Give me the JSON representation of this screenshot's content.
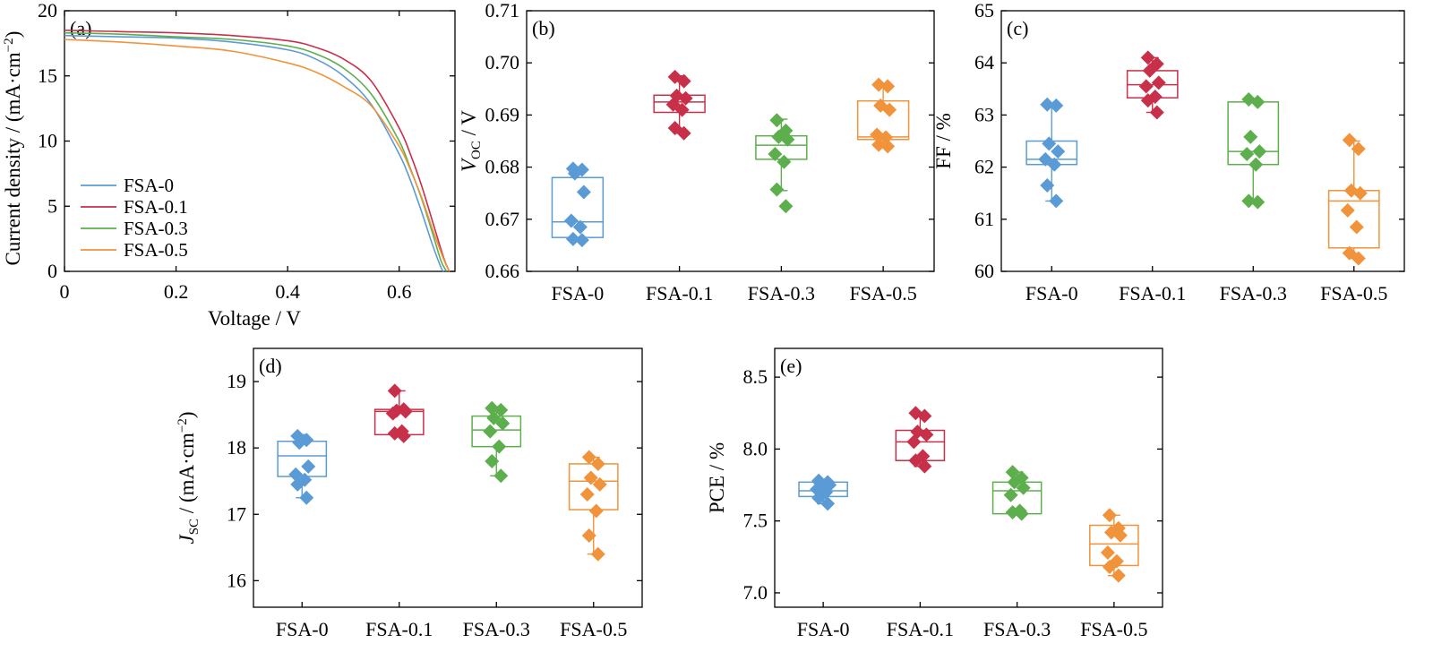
{
  "colors": {
    "FSA-0": "#5b9bd5",
    "FSA-0.1": "#c8304a",
    "FSA-0.3": "#5caf4c",
    "FSA-0.5": "#f0933b"
  },
  "chart_data": [
    {
      "panel": "(a)",
      "type": "line",
      "xlabel": "Voltage / V",
      "ylabel": "Current density / (mA·cm⁻²)",
      "xlim": [
        0,
        0.7
      ],
      "ylim": [
        0,
        20
      ],
      "xticks": [
        "0",
        "0.2",
        "0.4",
        "0.6"
      ],
      "yticks": [
        "0",
        "5",
        "10",
        "15",
        "20"
      ],
      "legend_position": "bottom-left",
      "series": [
        {
          "name": "FSA-0",
          "x": [
            0,
            0.1,
            0.2,
            0.3,
            0.4,
            0.45,
            0.5,
            0.55,
            0.6,
            0.62,
            0.64,
            0.66,
            0.675,
            0.68
          ],
          "y": [
            18.1,
            18.0,
            17.9,
            17.6,
            17.0,
            16.3,
            15.0,
            12.8,
            9.0,
            7.0,
            4.6,
            2.0,
            0.3,
            0
          ]
        },
        {
          "name": "FSA-0.1",
          "x": [
            0,
            0.1,
            0.2,
            0.3,
            0.4,
            0.45,
            0.5,
            0.55,
            0.6,
            0.62,
            0.64,
            0.66,
            0.68,
            0.69
          ],
          "y": [
            18.5,
            18.4,
            18.3,
            18.1,
            17.7,
            17.2,
            16.3,
            14.6,
            11.0,
            9.0,
            6.6,
            3.8,
            1.0,
            0
          ]
        },
        {
          "name": "FSA-0.3",
          "x": [
            0,
            0.1,
            0.2,
            0.3,
            0.4,
            0.45,
            0.5,
            0.55,
            0.6,
            0.62,
            0.64,
            0.66,
            0.675,
            0.685
          ],
          "y": [
            18.3,
            18.2,
            18.0,
            17.8,
            17.3,
            16.7,
            15.6,
            13.6,
            10.0,
            7.9,
            5.6,
            2.9,
            0.8,
            0
          ]
        },
        {
          "name": "FSA-0.5",
          "x": [
            0,
            0.1,
            0.2,
            0.3,
            0.4,
            0.45,
            0.5,
            0.55,
            0.6,
            0.62,
            0.64,
            0.66,
            0.68,
            0.69
          ],
          "y": [
            17.8,
            17.6,
            17.3,
            16.9,
            16.0,
            15.3,
            14.2,
            12.7,
            9.6,
            7.8,
            5.7,
            3.2,
            0.9,
            0
          ]
        }
      ]
    },
    {
      "panel": "(b)",
      "type": "box",
      "ylabel": "V_OC / V",
      "ylim": [
        0.66,
        0.71
      ],
      "yticks": [
        "0.66",
        "0.67",
        "0.68",
        "0.69",
        "0.70",
        "0.71"
      ],
      "categories": [
        "FSA-0",
        "FSA-0.1",
        "FSA-0.3",
        "FSA-0.5"
      ],
      "boxes": [
        {
          "q1": 0.6665,
          "median": 0.6695,
          "q3": 0.678,
          "min": 0.666,
          "max": 0.68,
          "points": [
            0.6797,
            0.6795,
            0.6788,
            0.6752,
            0.6697,
            0.6685,
            0.6662,
            0.666
          ]
        },
        {
          "q1": 0.6905,
          "median": 0.6925,
          "q3": 0.6938,
          "min": 0.6865,
          "max": 0.6975,
          "points": [
            0.6973,
            0.6965,
            0.6937,
            0.6932,
            0.692,
            0.691,
            0.6875,
            0.6865
          ]
        },
        {
          "q1": 0.6815,
          "median": 0.6842,
          "q3": 0.686,
          "min": 0.6755,
          "max": 0.6892,
          "points": [
            0.689,
            0.687,
            0.6858,
            0.6853,
            0.6825,
            0.681,
            0.6757,
            0.6725
          ]
        },
        {
          "q1": 0.6853,
          "median": 0.6858,
          "q3": 0.6927,
          "min": 0.684,
          "max": 0.6958,
          "points": [
            0.6958,
            0.6955,
            0.6918,
            0.691,
            0.6862,
            0.6857,
            0.6843,
            0.684
          ]
        }
      ]
    },
    {
      "panel": "(c)",
      "type": "box",
      "ylabel": "FF / %",
      "ylim": [
        60,
        65
      ],
      "yticks": [
        "60",
        "61",
        "62",
        "63",
        "64",
        "65"
      ],
      "categories": [
        "FSA-0",
        "FSA-0.1",
        "FSA-0.3",
        "FSA-0.5"
      ],
      "boxes": [
        {
          "q1": 62.05,
          "median": 62.15,
          "q3": 62.5,
          "min": 61.35,
          "max": 63.2,
          "points": [
            63.2,
            63.18,
            62.45,
            62.3,
            62.15,
            62.05,
            61.65,
            61.35
          ]
        },
        {
          "q1": 63.33,
          "median": 63.58,
          "q3": 63.85,
          "min": 63.05,
          "max": 64.1,
          "points": [
            64.1,
            63.98,
            63.85,
            63.62,
            63.55,
            63.35,
            63.28,
            63.05
          ]
        },
        {
          "q1": 62.05,
          "median": 62.3,
          "q3": 63.25,
          "min": 61.33,
          "max": 63.3,
          "points": [
            63.3,
            63.25,
            62.58,
            62.3,
            62.25,
            62.05,
            61.35,
            61.33
          ]
        },
        {
          "q1": 60.45,
          "median": 61.35,
          "q3": 61.55,
          "min": 60.25,
          "max": 62.5,
          "points": [
            62.52,
            62.35,
            61.55,
            61.5,
            61.17,
            60.85,
            60.35,
            60.25
          ]
        }
      ]
    },
    {
      "panel": "(d)",
      "type": "box",
      "ylabel": "J_SC / (mA·cm⁻²)",
      "ylim": [
        15.6,
        19.5
      ],
      "yticks": [
        "16",
        "17",
        "18",
        "19"
      ],
      "categories": [
        "FSA-0",
        "FSA-0.1",
        "FSA-0.3",
        "FSA-0.5"
      ],
      "boxes": [
        {
          "q1": 17.57,
          "median": 17.88,
          "q3": 18.1,
          "min": 17.25,
          "max": 18.2,
          "points": [
            18.18,
            18.12,
            18.08,
            17.72,
            17.6,
            17.52,
            17.45,
            17.25
          ]
        },
        {
          "q1": 18.2,
          "median": 18.55,
          "q3": 18.58,
          "min": 18.18,
          "max": 18.86,
          "points": [
            18.86,
            18.58,
            18.56,
            18.55,
            18.52,
            18.25,
            18.22,
            18.18
          ]
        },
        {
          "q1": 18.02,
          "median": 18.27,
          "q3": 18.48,
          "min": 17.58,
          "max": 18.6,
          "points": [
            18.6,
            18.57,
            18.45,
            18.37,
            18.25,
            18.02,
            17.8,
            17.58
          ]
        },
        {
          "q1": 17.07,
          "median": 17.5,
          "q3": 17.76,
          "min": 16.4,
          "max": 17.86,
          "points": [
            17.86,
            17.76,
            17.55,
            17.45,
            17.3,
            17.05,
            16.68,
            16.4
          ]
        }
      ]
    },
    {
      "panel": "(e)",
      "type": "box",
      "ylabel": "PCE / %",
      "ylim": [
        6.9,
        8.7
      ],
      "yticks": [
        "7.0",
        "7.5",
        "8.0",
        "8.5"
      ],
      "categories": [
        "FSA-0",
        "FSA-0.1",
        "FSA-0.3",
        "FSA-0.5"
      ],
      "boxes": [
        {
          "q1": 7.67,
          "median": 7.71,
          "q3": 7.77,
          "min": 7.62,
          "max": 7.78,
          "points": [
            7.78,
            7.77,
            7.76,
            7.75,
            7.72,
            7.7,
            7.66,
            7.62
          ]
        },
        {
          "q1": 7.92,
          "median": 8.05,
          "q3": 8.13,
          "min": 7.88,
          "max": 8.25,
          "points": [
            8.25,
            8.23,
            8.12,
            8.1,
            8.05,
            7.95,
            7.92,
            7.88
          ]
        },
        {
          "q1": 7.55,
          "median": 7.71,
          "q3": 7.77,
          "min": 7.55,
          "max": 7.84,
          "points": [
            7.84,
            7.8,
            7.77,
            7.73,
            7.68,
            7.57,
            7.56,
            7.55
          ]
        },
        {
          "q1": 7.19,
          "median": 7.34,
          "q3": 7.47,
          "min": 7.12,
          "max": 7.54,
          "points": [
            7.54,
            7.45,
            7.42,
            7.4,
            7.28,
            7.22,
            7.18,
            7.12
          ]
        }
      ]
    }
  ]
}
